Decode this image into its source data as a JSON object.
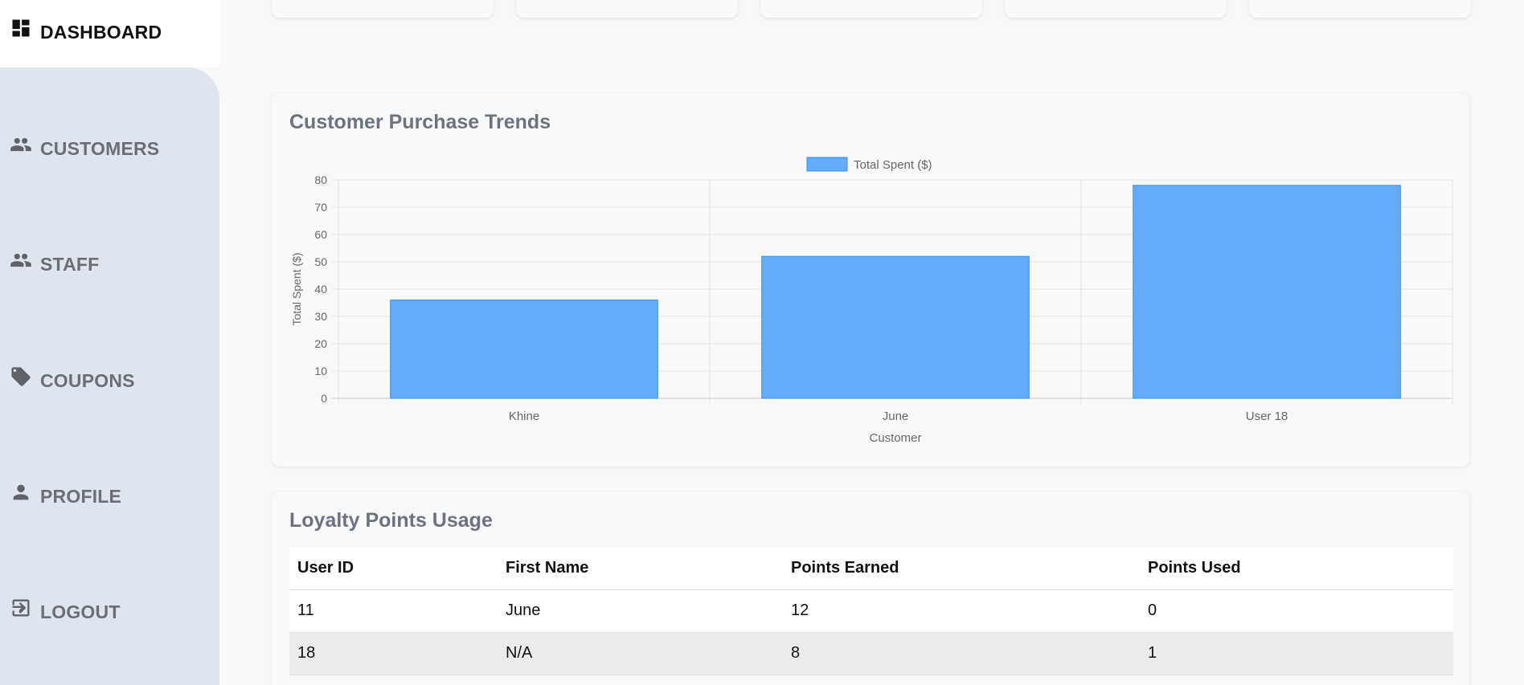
{
  "sidebar": {
    "items": [
      {
        "label": "DASHBOARD",
        "icon": "dashboard-icon",
        "active": true
      },
      {
        "label": "CUSTOMERS",
        "icon": "people-icon"
      },
      {
        "label": "STAFF",
        "icon": "people-icon"
      },
      {
        "label": "COUPONS",
        "icon": "tag-icon"
      },
      {
        "label": "PROFILE",
        "icon": "person-icon"
      },
      {
        "label": "LOGOUT",
        "icon": "logout-icon"
      }
    ]
  },
  "purchase_panel": {
    "title": "Customer Purchase Trends"
  },
  "chart_data": {
    "type": "bar",
    "title": "",
    "categories": [
      "Khine",
      "June",
      "User 18"
    ],
    "series": [
      {
        "name": "Total Spent ($)",
        "values": [
          36,
          52,
          78
        ]
      }
    ],
    "xlabel": "Customer",
    "ylabel": "Total Spent ($)",
    "ylim": [
      0,
      80
    ],
    "yticks": [
      0,
      10,
      20,
      30,
      40,
      50,
      60,
      70,
      80
    ],
    "legend": "top-center",
    "grid": true,
    "colors": {
      "fill": "#64acf8",
      "stroke": "#3b8ff0"
    }
  },
  "loyalty_panel": {
    "title": "Loyalty Points Usage",
    "columns": [
      "User ID",
      "First Name",
      "Points Earned",
      "Points Used"
    ],
    "rows": [
      [
        "11",
        "June",
        "12",
        "0"
      ],
      [
        "18",
        "N/A",
        "8",
        "1"
      ]
    ]
  }
}
